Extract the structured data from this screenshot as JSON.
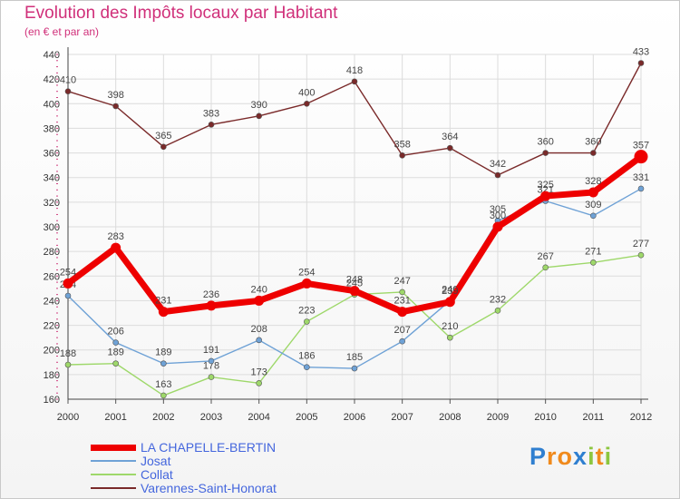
{
  "chart_data": {
    "type": "line",
    "title": "Evolution des Impôts locaux par Habitant",
    "subtitle": "(en € et par an)",
    "categories": [
      "2000",
      "2001",
      "2002",
      "2003",
      "2004",
      "2005",
      "2006",
      "2007",
      "2008",
      "2009",
      "2010",
      "2011",
      "2012"
    ],
    "ylim": [
      160,
      440
    ],
    "yticks": [
      160,
      180,
      200,
      220,
      240,
      260,
      280,
      300,
      320,
      340,
      360,
      380,
      400,
      420,
      440
    ],
    "series": [
      {
        "name": "Varennes-Saint-Honorat",
        "color": "#7a2a2a",
        "values": [
          410,
          398,
          365,
          383,
          390,
          400,
          418,
          358,
          364,
          342,
          360,
          360,
          433
        ]
      },
      {
        "name": "Collat",
        "color": "#9ed86a",
        "values": [
          188,
          189,
          163,
          178,
          173,
          223,
          245,
          247,
          210,
          232,
          267,
          271,
          277
        ]
      },
      {
        "name": "Josat",
        "color": "#6fa2d6",
        "values": [
          244,
          206,
          189,
          191,
          208,
          186,
          185,
          207,
          240,
          305,
          321,
          309,
          331
        ]
      },
      {
        "name": "LA CHAPELLE-BERTIN",
        "color": "#ee0000",
        "values": [
          254,
          283,
          231,
          236,
          240,
          254,
          248,
          231,
          239,
          300,
          325,
          328,
          357
        ]
      }
    ]
  },
  "legend": {
    "items": [
      {
        "label": "LA CHAPELLE-BERTIN",
        "color": "#ee0000"
      },
      {
        "label": "Josat",
        "color": "#6fa2d6"
      },
      {
        "label": "Collat",
        "color": "#9ed86a"
      },
      {
        "label": "Varennes-Saint-Honorat",
        "color": "#7a2a2a"
      }
    ]
  },
  "logo": {
    "text": "Proxiti",
    "letters": [
      {
        "ch": "P",
        "color": "#2f7fd0"
      },
      {
        "ch": "r",
        "color": "#f08a1c"
      },
      {
        "ch": "o",
        "color": "#f08a1c"
      },
      {
        "ch": "x",
        "color": "#2f7fd0"
      },
      {
        "ch": "i",
        "color": "#8cc63f"
      },
      {
        "ch": "t",
        "color": "#f08a1c"
      },
      {
        "ch": "i",
        "color": "#8cc63f"
      }
    ]
  }
}
